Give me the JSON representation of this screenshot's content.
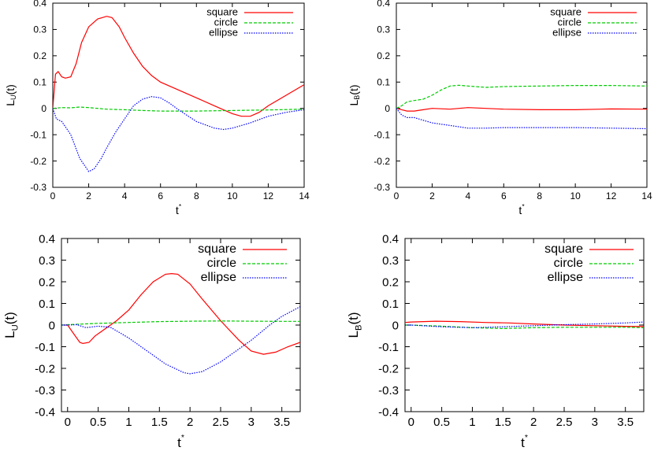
{
  "chart_data": [
    {
      "type": "line",
      "xlabel": "t",
      "xlabel_sup": "*",
      "ylabel": "L",
      "ylabel_sub": "U",
      "ylabel_suffix": "(t)",
      "xlim": [
        0,
        14
      ],
      "ylim": [
        -0.3,
        0.4
      ],
      "xticks": [
        0,
        2,
        4,
        6,
        8,
        10,
        12,
        14
      ],
      "yticks": [
        -0.3,
        -0.2,
        -0.1,
        0,
        0.1,
        0.2,
        0.3,
        0.4
      ],
      "ytick_labels": [
        "-0.3",
        "-0.2",
        "-0.1",
        "0",
        "0.1",
        "0.2",
        "0.3",
        "0.4"
      ],
      "grid": false,
      "legend_position": "top-right",
      "series": [
        {
          "name": "square",
          "color": "#ff0000",
          "dash": "solid",
          "x": [
            0,
            0.15,
            0.3,
            0.5,
            0.7,
            1.0,
            1.3,
            1.6,
            2.0,
            2.5,
            3.0,
            3.3,
            3.7,
            4.0,
            4.5,
            5.0,
            5.5,
            6.0,
            7.0,
            8.0,
            9.0,
            10.0,
            10.5,
            11.0,
            11.5,
            12.0,
            13.0,
            14.0
          ],
          "y": [
            0,
            0.13,
            0.14,
            0.12,
            0.115,
            0.12,
            0.17,
            0.25,
            0.31,
            0.34,
            0.35,
            0.345,
            0.31,
            0.27,
            0.21,
            0.16,
            0.125,
            0.1,
            0.07,
            0.04,
            0.01,
            -0.02,
            -0.03,
            -0.03,
            -0.015,
            0.01,
            0.05,
            0.09
          ]
        },
        {
          "name": "circle",
          "color": "#00cc00",
          "dash": "dashed",
          "x": [
            0,
            0.5,
            1,
            1.5,
            2,
            3,
            4,
            5,
            6,
            8,
            10,
            12,
            14
          ],
          "y": [
            0,
            0.003,
            0.002,
            0.005,
            0.003,
            -0.003,
            -0.005,
            -0.008,
            -0.01,
            -0.01,
            -0.008,
            -0.006,
            -0.003
          ]
        },
        {
          "name": "ellipse",
          "color": "#0000ff",
          "dash": "dotted",
          "x": [
            0,
            0.2,
            0.5,
            1.0,
            1.5,
            2.0,
            2.3,
            2.7,
            3.0,
            3.5,
            4.0,
            4.5,
            5.0,
            5.5,
            6.0,
            6.5,
            7.0,
            8.0,
            9.0,
            9.5,
            10.0,
            11.0,
            12.0,
            13.0,
            14.0
          ],
          "y": [
            0,
            -0.04,
            -0.05,
            -0.1,
            -0.19,
            -0.24,
            -0.23,
            -0.19,
            -0.15,
            -0.09,
            -0.04,
            0.01,
            0.035,
            0.045,
            0.04,
            0.02,
            -0.005,
            -0.05,
            -0.075,
            -0.08,
            -0.075,
            -0.055,
            -0.03,
            -0.015,
            -0.005
          ]
        }
      ]
    },
    {
      "type": "line",
      "xlabel": "t",
      "xlabel_sup": "*",
      "ylabel": "L",
      "ylabel_sub": "B",
      "ylabel_suffix": "(t)",
      "xlim": [
        0,
        14
      ],
      "ylim": [
        -0.3,
        0.4
      ],
      "xticks": [
        0,
        2,
        4,
        6,
        8,
        10,
        12,
        14
      ],
      "yticks": [
        -0.3,
        -0.2,
        -0.1,
        0,
        0.1,
        0.2,
        0.3,
        0.4
      ],
      "ytick_labels": [
        "-0.3",
        "-0.2",
        "-0.1",
        "0",
        "0.1",
        "0.2",
        "0.3",
        "0.4"
      ],
      "grid": false,
      "legend_position": "top-right",
      "series": [
        {
          "name": "square",
          "color": "#ff0000",
          "dash": "solid",
          "x": [
            0,
            0.3,
            0.6,
            1.0,
            1.5,
            2.0,
            3.0,
            4.0,
            5.0,
            6.0,
            8.0,
            10.0,
            12.0,
            14.0
          ],
          "y": [
            0,
            -0.005,
            -0.01,
            -0.01,
            -0.005,
            0,
            -0.003,
            0.003,
            0,
            -0.003,
            -0.005,
            -0.005,
            -0.002,
            -0.003
          ]
        },
        {
          "name": "circle",
          "color": "#00cc00",
          "dash": "dashed",
          "x": [
            0,
            0.3,
            0.6,
            1.0,
            1.5,
            2.0,
            2.5,
            3.0,
            3.5,
            4.0,
            5.0,
            6.0,
            8.0,
            10.0,
            12.0,
            14.0
          ],
          "y": [
            0,
            0.01,
            0.025,
            0.03,
            0.035,
            0.05,
            0.07,
            0.085,
            0.088,
            0.085,
            0.08,
            0.083,
            0.085,
            0.087,
            0.087,
            0.085
          ]
        },
        {
          "name": "ellipse",
          "color": "#0000ff",
          "dash": "dotted",
          "x": [
            0,
            0.3,
            0.6,
            1.0,
            1.5,
            2.0,
            2.5,
            3.0,
            3.5,
            4.0,
            5.0,
            6.0,
            8.0,
            10.0,
            12.0,
            14.0
          ],
          "y": [
            0,
            -0.025,
            -0.035,
            -0.035,
            -0.045,
            -0.055,
            -0.06,
            -0.065,
            -0.07,
            -0.075,
            -0.075,
            -0.073,
            -0.073,
            -0.073,
            -0.075,
            -0.077
          ]
        }
      ]
    },
    {
      "type": "line",
      "xlabel": "t",
      "xlabel_sup": "*",
      "ylabel": "L",
      "ylabel_sub": "U",
      "ylabel_suffix": "(t)",
      "xlim": [
        -0.1,
        3.8
      ],
      "ylim": [
        -0.4,
        0.4
      ],
      "xticks": [
        0,
        0.5,
        1,
        1.5,
        2,
        2.5,
        3,
        3.5
      ],
      "yticks": [
        -0.4,
        -0.3,
        -0.2,
        -0.1,
        0,
        0.1,
        0.2,
        0.3,
        0.4
      ],
      "ytick_labels": [
        "-0.4",
        "-0.3",
        "-0.2",
        "-0.1",
        "0",
        "0.1",
        "0.2",
        "0.3",
        "0.4"
      ],
      "grid": false,
      "legend_position": "top-right",
      "series": [
        {
          "name": "square",
          "color": "#ff0000",
          "dash": "solid",
          "x": [
            -0.1,
            0,
            0.1,
            0.2,
            0.25,
            0.35,
            0.45,
            0.6,
            0.8,
            1.0,
            1.2,
            1.4,
            1.6,
            1.7,
            1.8,
            2.0,
            2.2,
            2.5,
            2.8,
            3.0,
            3.2,
            3.4,
            3.6,
            3.8
          ],
          "y": [
            0,
            0,
            -0.04,
            -0.08,
            -0.085,
            -0.08,
            -0.05,
            -0.02,
            0.02,
            0.07,
            0.14,
            0.2,
            0.235,
            0.238,
            0.235,
            0.19,
            0.12,
            0.02,
            -0.07,
            -0.12,
            -0.135,
            -0.125,
            -0.1,
            -0.08
          ]
        },
        {
          "name": "circle",
          "color": "#00cc00",
          "dash": "dashed",
          "x": [
            -0.1,
            0,
            0.5,
            1.0,
            1.5,
            2.0,
            2.5,
            3.0,
            3.5,
            3.8
          ],
          "y": [
            0,
            0.002,
            0.008,
            0.012,
            0.016,
            0.018,
            0.019,
            0.018,
            0.017,
            0.017
          ]
        },
        {
          "name": "ellipse",
          "color": "#0000ff",
          "dash": "dotted",
          "x": [
            -0.1,
            0,
            0.15,
            0.3,
            0.5,
            0.7,
            1.0,
            1.3,
            1.6,
            1.9,
            2.0,
            2.2,
            2.5,
            2.8,
            3.0,
            3.3,
            3.5,
            3.8
          ],
          "y": [
            0,
            0,
            0.002,
            -0.012,
            -0.005,
            -0.01,
            -0.06,
            -0.12,
            -0.18,
            -0.22,
            -0.225,
            -0.215,
            -0.17,
            -0.11,
            -0.07,
            0.0,
            0.04,
            0.085
          ]
        }
      ]
    },
    {
      "type": "line",
      "xlabel": "t",
      "xlabel_sup": "*",
      "ylabel": "L",
      "ylabel_sub": "B",
      "ylabel_suffix": "(t)",
      "xlim": [
        -0.1,
        3.8
      ],
      "ylim": [
        -0.4,
        0.4
      ],
      "xticks": [
        0,
        0.5,
        1,
        1.5,
        2,
        2.5,
        3,
        3.5
      ],
      "yticks": [
        -0.4,
        -0.3,
        -0.2,
        -0.1,
        0,
        0.1,
        0.2,
        0.3,
        0.4
      ],
      "ytick_labels": [
        "-0.4",
        "-0.3",
        "-0.2",
        "-0.1",
        "0",
        "0.1",
        "0.2",
        "0.3",
        "0.4"
      ],
      "grid": false,
      "legend_position": "top-right",
      "series": [
        {
          "name": "square",
          "color": "#ff0000",
          "dash": "solid",
          "x": [
            -0.1,
            0,
            0.4,
            0.8,
            1.2,
            1.6,
            2.0,
            2.5,
            3.0,
            3.5,
            3.8
          ],
          "y": [
            0.012,
            0.014,
            0.018,
            0.016,
            0.012,
            0.01,
            0.005,
            0,
            -0.003,
            -0.006,
            -0.007
          ]
        },
        {
          "name": "circle",
          "color": "#00cc00",
          "dash": "dashed",
          "x": [
            -0.1,
            0,
            0.5,
            1.0,
            1.5,
            2.0,
            2.5,
            3.0,
            3.5,
            3.8
          ],
          "y": [
            0,
            0,
            -0.005,
            -0.012,
            -0.016,
            -0.012,
            -0.01,
            -0.01,
            -0.01,
            -0.012
          ]
        },
        {
          "name": "ellipse",
          "color": "#0000ff",
          "dash": "dotted",
          "x": [
            -0.1,
            0,
            0.5,
            1.0,
            1.5,
            2.0,
            2.5,
            3.0,
            3.5,
            3.8
          ],
          "y": [
            0,
            0,
            -0.008,
            -0.012,
            -0.008,
            -0.003,
            0.002,
            0.005,
            0.01,
            0.014
          ]
        }
      ]
    }
  ]
}
